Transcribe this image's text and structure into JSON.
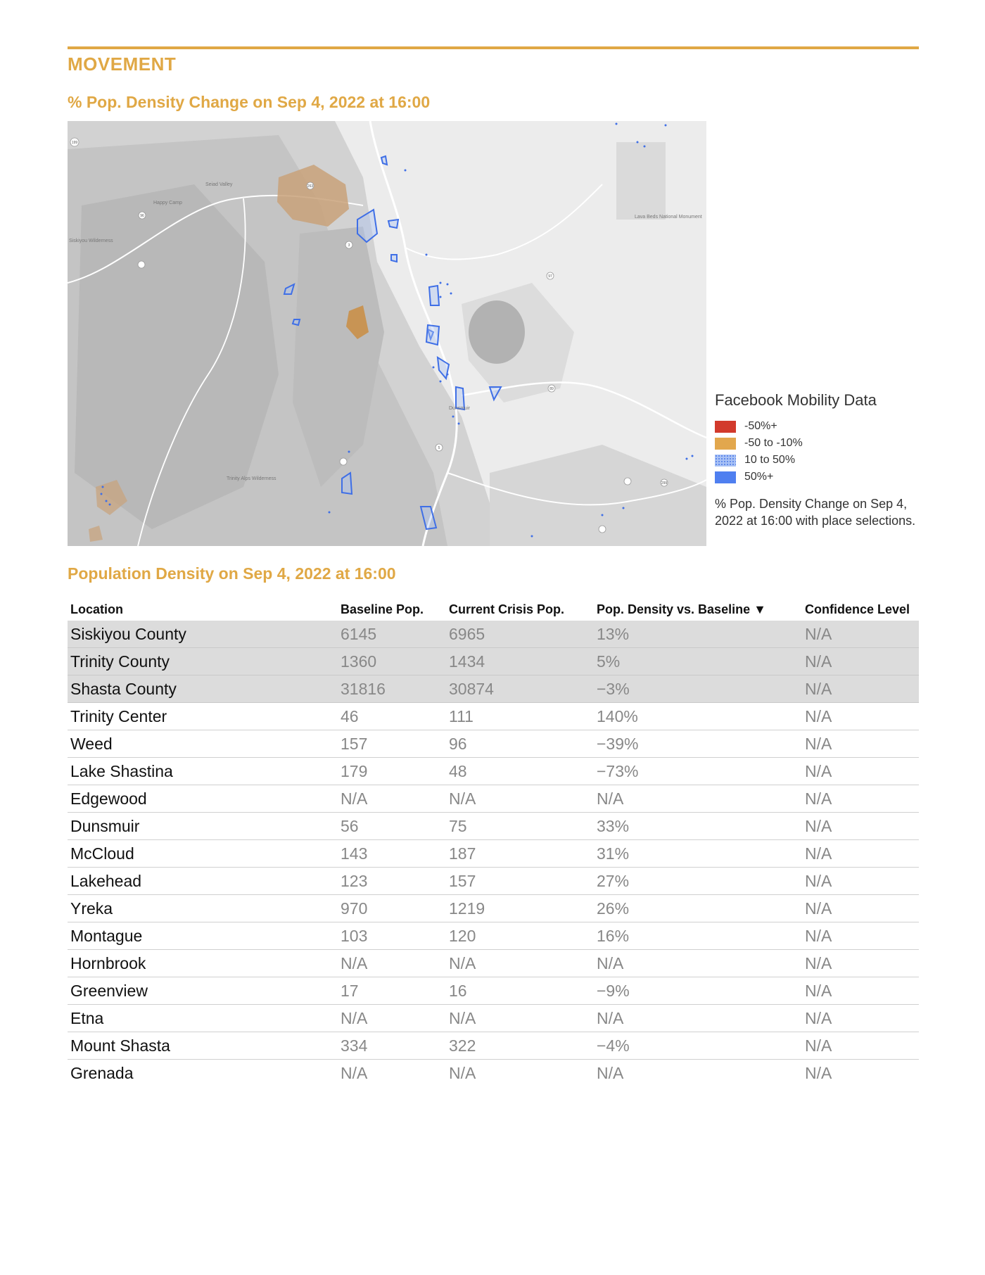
{
  "section": {
    "title": "MOVEMENT"
  },
  "map": {
    "title": "% Pop. Density Change on Sep 4, 2022 at 16:00",
    "place_labels": [
      "Happy Camp",
      "Seiad Valley",
      "Siskiyou Wilderness",
      "Lava Beds National Monument",
      "Trinity Alps Wilderness",
      "Dunsmuir"
    ],
    "road_shields": [
      "199",
      "96",
      "263",
      "3",
      "97",
      "89",
      "5",
      "299"
    ]
  },
  "legend": {
    "title": "Facebook Mobility Data",
    "items": [
      {
        "label": "-50%+",
        "color": "#d23a2c"
      },
      {
        "label": "-50 to -10%",
        "color": "#e2a74d"
      },
      {
        "label": "10 to 50%",
        "color": "#a9c2f5"
      },
      {
        "label": "50%+",
        "color": "#4f7ff0"
      }
    ],
    "note": "% Pop. Density Change on Sep 4, 2022 at 16:00 with place selections."
  },
  "table": {
    "title": "Population Density on Sep 4, 2022 at 16:00",
    "headers": [
      "Location",
      "Baseline Pop.",
      "Current Crisis Pop.",
      "Pop. Density vs. Baseline ▼",
      "Confidence Level"
    ],
    "rows": [
      [
        "Siskiyou County",
        "6145",
        "6965",
        "13%",
        "N/A"
      ],
      [
        "Trinity County",
        "1360",
        "1434",
        "5%",
        "N/A"
      ],
      [
        "Shasta County",
        "31816",
        "30874",
        "−3%",
        "N/A"
      ],
      [
        "Trinity Center",
        "46",
        "111",
        "140%",
        "N/A"
      ],
      [
        "Weed",
        "157",
        "96",
        "−39%",
        "N/A"
      ],
      [
        "Lake Shastina",
        "179",
        "48",
        "−73%",
        "N/A"
      ],
      [
        "Edgewood",
        "N/A",
        "N/A",
        "N/A",
        "N/A"
      ],
      [
        "Dunsmuir",
        "56",
        "75",
        "33%",
        "N/A"
      ],
      [
        "McCloud",
        "143",
        "187",
        "31%",
        "N/A"
      ],
      [
        "Lakehead",
        "123",
        "157",
        "27%",
        "N/A"
      ],
      [
        "Yreka",
        "970",
        "1219",
        "26%",
        "N/A"
      ],
      [
        "Montague",
        "103",
        "120",
        "16%",
        "N/A"
      ],
      [
        "Hornbrook",
        "N/A",
        "N/A",
        "N/A",
        "N/A"
      ],
      [
        "Greenview",
        "17",
        "16",
        "−9%",
        "N/A"
      ],
      [
        "Etna",
        "N/A",
        "N/A",
        "N/A",
        "N/A"
      ],
      [
        "Mount Shasta",
        "334",
        "322",
        "−4%",
        "N/A"
      ],
      [
        "Grenada",
        "N/A",
        "N/A",
        "N/A",
        "N/A"
      ]
    ]
  }
}
